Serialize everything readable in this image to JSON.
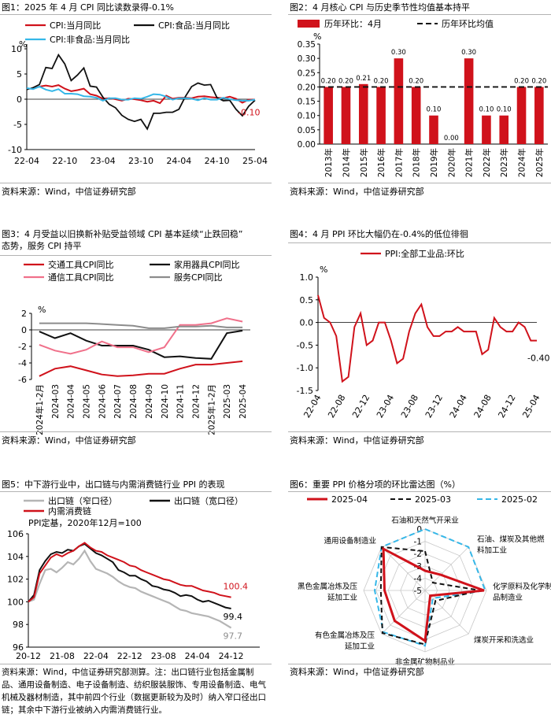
{
  "colors": {
    "red": "#d0121b",
    "black": "#111111",
    "blue": "#35b7e8",
    "pink": "#f0708a",
    "gray": "#8c8c8c",
    "ltgray": "#b5b5b5"
  },
  "panels": {
    "p1": {
      "title": "图1：2025 年 4 月 CPI 同比读数录得-0.1%",
      "source": "资料来源：Wind，中信证券研究部"
    },
    "p2": {
      "title": "图2：4 月核心 CPI 与历史季节性均值基本持平",
      "source": "资料来源：Wind，中信证券研究部"
    },
    "p3": {
      "title": "图3：4 月受益以旧换新补贴受益领域 CPI 基本延续“止跌回稳”\n态势，服务 CPI 持平",
      "source": "资料来源：Wind，中信证券研究部"
    },
    "p4": {
      "title": "图4：4 月 PPI 环比大幅仍在-0.4%的低位徘徊",
      "source": "资料来源：Wind，中信证券研究部"
    },
    "p5": {
      "title": "图5：中下游行业中，出口链与内需消费链行业 PPI 的表现",
      "source": "资料来源：Wind，中信证券研究部测算。注：出口链行业包括金属制品、通用设备制造、电子设备制造、纺织服装服饰、专用设备制造、电气机械及器材制造，其中前四个行业（数据更新较为及时）纳入窄口径出口链；其余中下游行业被纳入内需消费链行业。"
    },
    "p6": {
      "title": "图6：重要 PPI 价格分项的环比雷达图（%）",
      "source": "资料来源：Wind，中信证券研究部"
    }
  },
  "chart_data": [
    {
      "id": "c1",
      "type": "line",
      "unit": "%",
      "ylim": [
        -10,
        10
      ],
      "yticks": [
        -10,
        -5,
        0,
        5,
        10
      ],
      "xticks": [
        "22-04",
        "22-10",
        "23-04",
        "23-10",
        "24-04",
        "24-10",
        "25-04"
      ],
      "n": 37,
      "series": [
        {
          "name": "CPI:当月同比",
          "color": "red",
          "values": [
            2.1,
            2.1,
            2.5,
            2.7,
            2.5,
            2.8,
            2.1,
            1.6,
            1.8,
            2.1,
            1.0,
            0.7,
            0.1,
            0.2,
            0,
            -0.3,
            0.1,
            0,
            -0.2,
            -0.5,
            -0.3,
            -0.8,
            0.7,
            0.1,
            0.3,
            0.3,
            0.2,
            0.5,
            0.6,
            0.4,
            0.3,
            0.2,
            0.5,
            0.1,
            -0.7,
            -0.1,
            -0.1
          ]
        },
        {
          "name": "CPI:食品:当月同比",
          "color": "black",
          "values": [
            1.9,
            2.3,
            2.9,
            6.3,
            6.1,
            8.8,
            7.0,
            3.7,
            4.8,
            6.2,
            2.6,
            2.4,
            0.4,
            -1.0,
            -1.7,
            -3.2,
            -4.0,
            -4.4,
            -4.0,
            -5.9,
            -2.8,
            -2.8,
            -2.6,
            -2.6,
            -2.0,
            0.5,
            2.5,
            3.2,
            2.8,
            2.9,
            0.3,
            -0.3,
            -0.2,
            -2.0,
            -3.3,
            -1.4,
            -0.2
          ]
        },
        {
          "name": "CPI:非食品:当月同比",
          "color": "blue",
          "values": [
            2.2,
            2.0,
            2.5,
            1.9,
            1.6,
            2.0,
            1.1,
            1.1,
            1.0,
            0.6,
            0.5,
            0.3,
            -0.3,
            0.2,
            0.2,
            -0.1,
            -0.1,
            0.2,
            0.1,
            0.5,
            1.0,
            0.9,
            0.5,
            -0.1,
            0.2,
            0.2,
            0.1,
            -0.2,
            0.2,
            -0.1,
            -0.1,
            0.3,
            0.0,
            -0.2,
            -0.3,
            -0.3,
            -0.1
          ]
        }
      ],
      "annotation": "-0.10"
    },
    {
      "id": "c2",
      "type": "bar",
      "unit": "%",
      "ylim": [
        0,
        0.35
      ],
      "yticks": [
        "0.00",
        "0.05",
        "0.10",
        "0.15",
        "0.20",
        "0.25",
        "0.30",
        "0.35"
      ],
      "categories": [
        "2013年",
        "2014年",
        "2015年",
        "2016年",
        "2017年",
        "2018年",
        "2019年",
        "2020年",
        "2021年",
        "2022年",
        "2023年",
        "2024年",
        "2025年"
      ],
      "values": [
        0.2,
        0.2,
        0.21,
        0.2,
        0.3,
        0.2,
        0.1,
        0.0,
        0.3,
        0.1,
        0.1,
        0.2,
        0.2
      ],
      "labels": [
        "0.20",
        "0.20",
        "0.21",
        "0.20",
        "0.30",
        "0.20",
        "0.10",
        "0.00",
        "0.30",
        "0.10",
        "0.10",
        "0.20",
        "0.20"
      ],
      "mean": 0.2,
      "legend": [
        "历年环比：4月",
        "历年环比均值"
      ]
    },
    {
      "id": "c3",
      "type": "line",
      "unit": "%",
      "ylim": [
        -6,
        2
      ],
      "yticks": [
        -6,
        -4,
        -2,
        0,
        2
      ],
      "categories": [
        "2024年1-2月",
        "2024-03",
        "2024-04",
        "2024-05",
        "2024-06",
        "2024-07",
        "2024-08",
        "2024-09",
        "2024-10",
        "2024-11",
        "2024-12",
        "2025年1-2月",
        "2025-03",
        "2025-04"
      ],
      "series": [
        {
          "name": "交通工具CPI同比",
          "color": "red",
          "values": [
            -5.6,
            -4.7,
            -4.4,
            -4.9,
            -5.4,
            -5.6,
            -5.5,
            -5.3,
            -5.3,
            -4.7,
            -4.2,
            -4.2,
            -4.0,
            -3.8
          ]
        },
        {
          "name": "家用器具CPI同比",
          "color": "black",
          "values": [
            -0.2,
            -1.0,
            -0.4,
            -1.3,
            -1.9,
            -1.9,
            -1.9,
            -2.4,
            -3.3,
            -3.2,
            -3.4,
            -3.5,
            -0.4,
            -0.1
          ]
        },
        {
          "name": "通信工具CPI同比",
          "color": "pink",
          "values": [
            -1.8,
            -2.5,
            -2.9,
            -2.4,
            -1.4,
            -2.1,
            -2.1,
            -2.7,
            -2.1,
            0.6,
            0.6,
            0.8,
            1.4,
            1.0
          ]
        },
        {
          "name": "服务CPI同比",
          "color": "gray",
          "values": [
            0.8,
            0.8,
            0.8,
            0.8,
            0.7,
            0.6,
            0.5,
            0.2,
            0.2,
            0.4,
            0.4,
            0.5,
            0.3,
            0.3
          ]
        }
      ]
    },
    {
      "id": "c4",
      "type": "line",
      "unit": "%",
      "ylim": [
        -1.5,
        1.0
      ],
      "yticks": [
        "1.0",
        "0.5",
        "0.0",
        "-0.5",
        "-1.0",
        "-1.5"
      ],
      "xticks": [
        "22-04",
        "22-08",
        "22-12",
        "23-04",
        "23-08",
        "23-12",
        "24-04",
        "24-08",
        "24-12",
        "25-04"
      ],
      "n": 37,
      "series": [
        {
          "name": "PPI:全部工业品:环比",
          "color": "red",
          "values": [
            0.6,
            0.1,
            0.0,
            -0.3,
            -1.3,
            -1.2,
            -0.1,
            0.2,
            -0.5,
            -0.4,
            0.0,
            0.0,
            -0.4,
            -0.9,
            -0.8,
            -0.2,
            0.2,
            0.4,
            -0.1,
            -0.3,
            -0.3,
            -0.2,
            -0.2,
            -0.1,
            -0.2,
            -0.2,
            -0.2,
            -0.7,
            -0.6,
            0.1,
            -0.1,
            -0.2,
            -0.2,
            0.0,
            -0.1,
            -0.4,
            -0.4
          ]
        }
      ],
      "annotation": "-0.40"
    },
    {
      "id": "c5",
      "type": "line",
      "title": "PPI定基，2020年12月=100",
      "ylim": [
        96,
        106
      ],
      "yticks": [
        96,
        98,
        100,
        102,
        104,
        106
      ],
      "xticks": [
        "20-12",
        "21-08",
        "22-04",
        "22-12",
        "23-08",
        "24-04",
        "24-12"
      ],
      "series": [
        {
          "name": "出口链（窄口径）",
          "color": "ltgray",
          "end": "97.7",
          "values": [
            100,
            100.2,
            101.6,
            102.8,
            102.9,
            102.6,
            103.0,
            103.5,
            103.3,
            103.8,
            104.5,
            103.6,
            102.9,
            102.7,
            102.5,
            102.2,
            101.8,
            101.5,
            101.3,
            101.2,
            100.9,
            100.7,
            100.5,
            100.3,
            100.1,
            99.9,
            99.6,
            99.3,
            99.2,
            99.0,
            98.9,
            98.8,
            98.7,
            98.5,
            98.3,
            98.0,
            97.7
          ]
        },
        {
          "name": "出口链（宽口径）",
          "color": "black",
          "end": "99.4",
          "values": [
            100,
            100.6,
            102.8,
            103.6,
            104.2,
            104.4,
            104.3,
            104.6,
            104.5,
            104.9,
            105.1,
            104.7,
            104.3,
            104.1,
            103.8,
            103.5,
            102.8,
            102.6,
            102.3,
            102.3,
            102.0,
            101.8,
            101.4,
            101.3,
            101.1,
            101.0,
            100.8,
            100.5,
            100.6,
            100.5,
            100.2,
            100.0,
            100.1,
            99.9,
            99.7,
            99.5,
            99.4
          ]
        },
        {
          "name": "内需消费链",
          "color": "red",
          "end": "100.4",
          "values": [
            100,
            100.4,
            102.5,
            103.2,
            103.9,
            104.2,
            104.0,
            104.3,
            104.5,
            104.9,
            105.2,
            104.8,
            104.5,
            104.4,
            104.1,
            103.9,
            103.7,
            103.5,
            103.2,
            103.1,
            102.8,
            102.6,
            102.4,
            102.2,
            102.0,
            101.9,
            101.7,
            101.5,
            101.4,
            101.4,
            101.2,
            101.0,
            100.9,
            100.8,
            100.6,
            100.5,
            100.4
          ]
        }
      ]
    },
    {
      "id": "c6",
      "type": "radar",
      "rlim": [
        -5,
        0
      ],
      "rticks": [
        "0",
        "-1",
        "-2",
        "-3",
        "-4",
        "-5"
      ],
      "axes": [
        "石油和天然气开采业",
        "石油、煤炭及其他燃料加工业",
        "化学原料及化学制品制造业",
        "煤炭开采和洗选业",
        "非金属矿物制品业",
        "有色金属冶炼及压延加工业",
        "黑色金属冶炼及压延加工业",
        "通用设备制造业"
      ],
      "series": [
        {
          "name": "2025-04",
          "color": "red",
          "dash": "",
          "values": [
            -3.4,
            -3.2,
            -0.2,
            -4.4,
            -0.9,
            -1.5,
            -1.7,
            -0.2
          ]
        },
        {
          "name": "2025-03",
          "color": "black",
          "dash": "6,4",
          "values": [
            -1.8,
            -4.1,
            -0.5,
            -3.8,
            -0.6,
            -0.1,
            -1.4,
            0.0
          ]
        },
        {
          "name": "2025-02",
          "color": "blue",
          "dash": "7,4",
          "values": [
            0.0,
            0.0,
            -0.1,
            -4.1,
            -0.5,
            -0.2,
            -0.9,
            0.0
          ]
        }
      ]
    }
  ]
}
